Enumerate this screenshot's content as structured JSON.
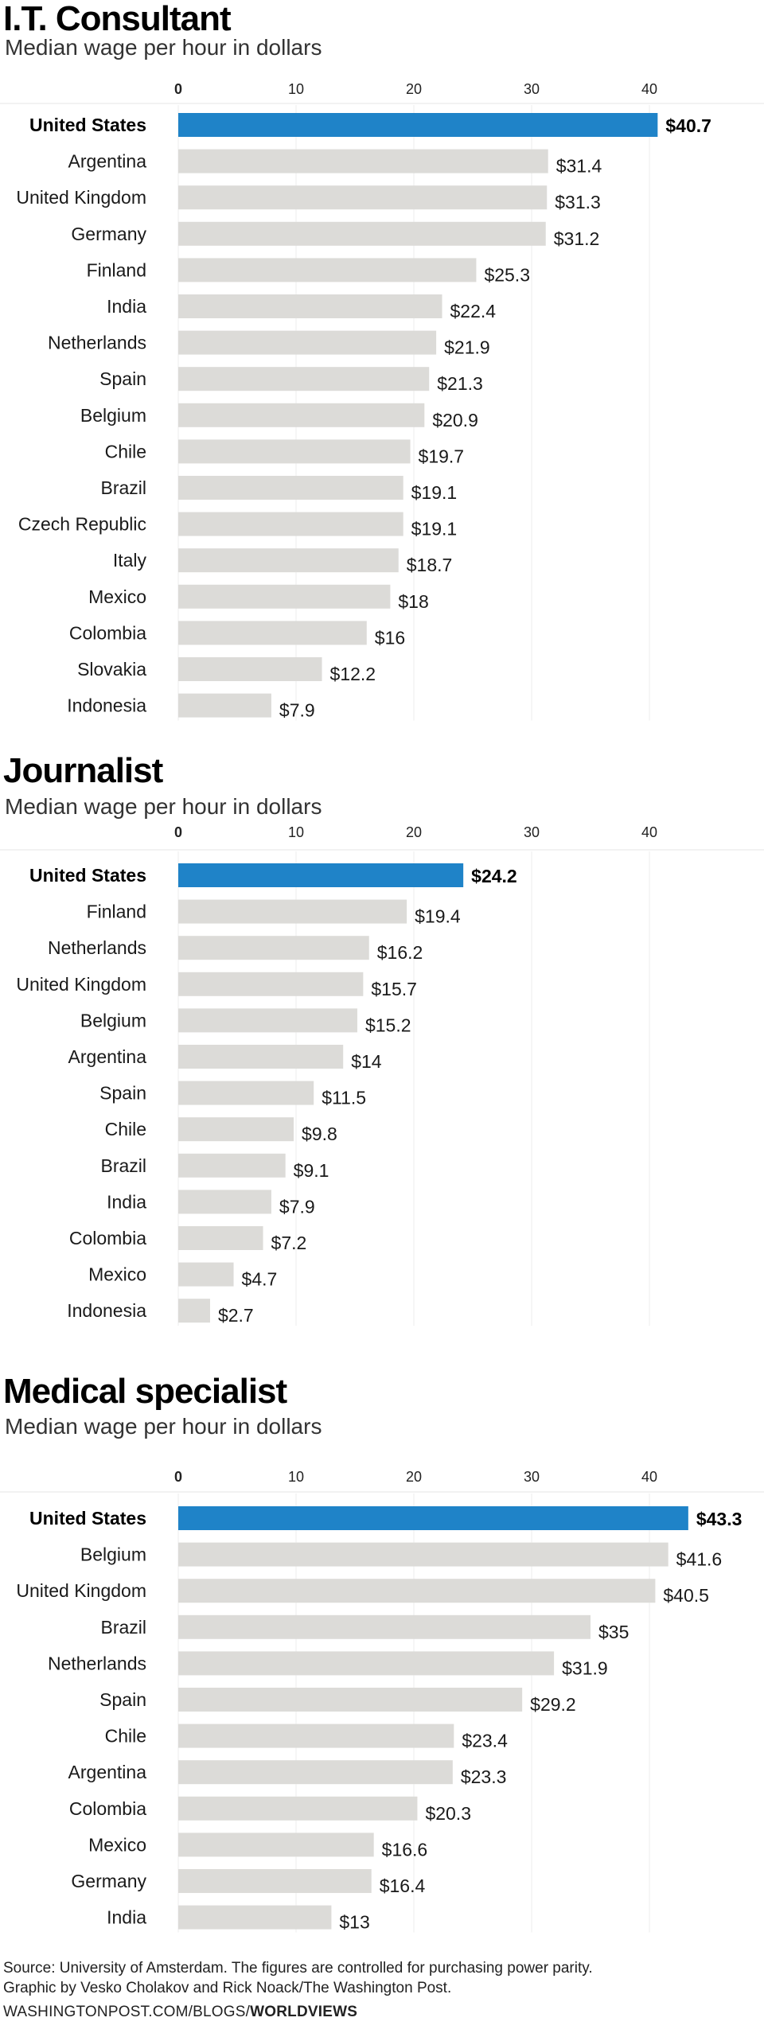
{
  "chart_data": [
    {
      "type": "bar",
      "orientation": "horizontal",
      "title": "I.T. Consultant",
      "subtitle": "Median wage per hour in dollars",
      "xlim": [
        0,
        45
      ],
      "ticks": [
        0,
        10,
        20,
        30,
        40
      ],
      "value_prefix": "$",
      "highlight": "United States",
      "highlight_color": "#1f83c8",
      "bar_color": "#dcdbd8",
      "categories": [
        "United States",
        "Argentina",
        "United Kingdom",
        "Germany",
        "Finland",
        "India",
        "Netherlands",
        "Spain",
        "Belgium",
        "Chile",
        "Brazil",
        "Czech Republic",
        "Italy",
        "Mexico",
        "Colombia",
        "Slovakia",
        "Indonesia"
      ],
      "values": [
        40.7,
        31.4,
        31.3,
        31.2,
        25.3,
        22.4,
        21.9,
        21.3,
        20.9,
        19.7,
        19.1,
        19.1,
        18.7,
        18,
        16,
        12.2,
        7.9
      ]
    },
    {
      "type": "bar",
      "orientation": "horizontal",
      "title": "Journalist",
      "subtitle": "Median wage per hour in dollars",
      "xlim": [
        0,
        45
      ],
      "ticks": [
        0,
        10,
        20,
        30,
        40
      ],
      "value_prefix": "$",
      "highlight": "United States",
      "highlight_color": "#1f83c8",
      "bar_color": "#dcdbd8",
      "categories": [
        "United States",
        "Finland",
        "Netherlands",
        "United Kingdom",
        "Belgium",
        "Argentina",
        "Spain",
        "Chile",
        "Brazil",
        "India",
        "Colombia",
        "Mexico",
        "Indonesia"
      ],
      "values": [
        24.2,
        19.4,
        16.2,
        15.7,
        15.2,
        14,
        11.5,
        9.8,
        9.1,
        7.9,
        7.2,
        4.7,
        2.7
      ]
    },
    {
      "type": "bar",
      "orientation": "horizontal",
      "title": "Medical specialist",
      "subtitle": "Median wage per hour in dollars",
      "xlim": [
        0,
        45
      ],
      "ticks": [
        0,
        10,
        20,
        30,
        40
      ],
      "value_prefix": "$",
      "highlight": "United States",
      "highlight_color": "#1f83c8",
      "bar_color": "#dcdbd8",
      "categories": [
        "United States",
        "Belgium",
        "United Kingdom",
        "Brazil",
        "Netherlands",
        "Spain",
        "Chile",
        "Argentina",
        "Colombia",
        "Mexico",
        "Germany",
        "India"
      ],
      "values": [
        43.3,
        41.6,
        40.5,
        35,
        31.9,
        29.2,
        23.4,
        23.3,
        20.3,
        16.6,
        16.4,
        13
      ]
    }
  ],
  "footer": {
    "source": "Source: University of Amsterdam. The figures are controlled for purchasing power parity.",
    "credit": "Graphic by Vesko Cholakov and Rick Noack/The Washington Post.",
    "brand_prefix": "WASHINGTONPOST.COM/BLOGS/",
    "brand_bold": "WORLDVIEWS"
  }
}
